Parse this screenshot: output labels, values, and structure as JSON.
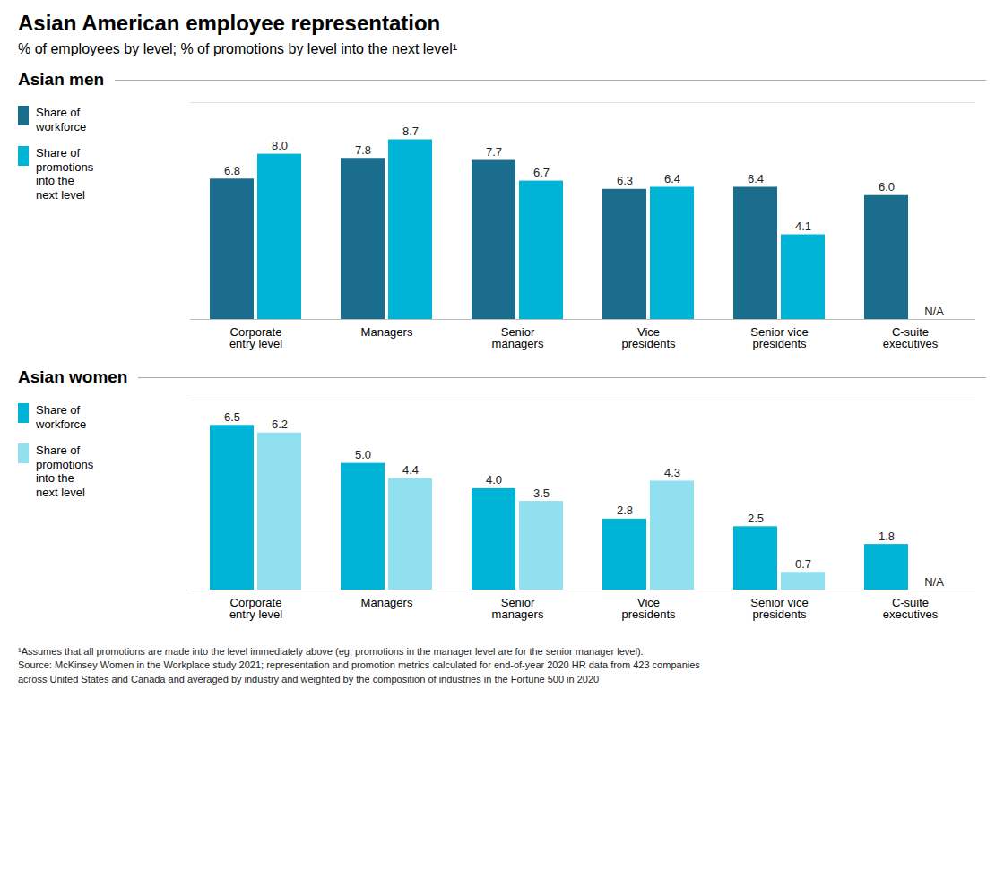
{
  "title": "Asian American employee representation",
  "subtitle": "% of employees by level; % of promotions by level into the next level¹",
  "footnote": "¹Assumes that all promotions are made into the level immediately above (eg, promotions in the manager level are for the senior manager level).\nSource: McKinsey Women in the Workplace study 2021; representation and promotion metrics calculated for end-of-year 2020 HR data from 423 companies\nacross United States and Canada and averaged by industry and weighted by the composition of industries in the Fortune 500 in 2020",
  "chart_data": [
    {
      "type": "bar",
      "title": "Asian men",
      "categories": [
        "Corporate\nentry level",
        "Managers",
        "Senior\nmanagers",
        "Vice\npresidents",
        "Senior vice\npresidents",
        "C-suite\nexecutives"
      ],
      "series": [
        {
          "name": "Share of\nworkforce",
          "color": "#1b6d8e",
          "values": [
            6.8,
            7.8,
            7.7,
            6.3,
            6.4,
            6.0
          ],
          "value_labels": [
            "6.8",
            "7.8",
            "7.7",
            "6.3",
            "6.4",
            "6.0"
          ]
        },
        {
          "name": "Share of\npromotions\ninto the\nnext level",
          "color": "#00b4d8",
          "values": [
            8.0,
            8.7,
            6.7,
            6.4,
            4.1,
            null
          ],
          "value_labels": [
            "8.0",
            "8.7",
            "6.7",
            "6.4",
            "4.1",
            null
          ]
        }
      ],
      "ylim": [
        0,
        10.5
      ],
      "yticks": [],
      "tick_labels": "x",
      "data_labels": true,
      "legend": "left",
      "annotations": [
        {
          "text": "N/A",
          "category": "C-suite\nexecutives",
          "series": "Share of\npromotions\ninto the\nnext level"
        }
      ]
    },
    {
      "type": "bar",
      "title": "Asian women",
      "categories": [
        "Corporate\nentry level",
        "Managers",
        "Senior\nmanagers",
        "Vice\npresidents",
        "Senior vice\npresidents",
        "C-suite\nexecutives"
      ],
      "series": [
        {
          "name": "Share of\nworkforce",
          "color": "#00b4d8",
          "values": [
            6.5,
            5.0,
            4.0,
            2.8,
            2.5,
            1.8
          ],
          "value_labels": [
            "6.5",
            "5.0",
            "4.0",
            "2.8",
            "2.5",
            "1.8"
          ]
        },
        {
          "name": "Share of\npromotions\ninto the\nnext level",
          "color": "#90e0ef",
          "values": [
            6.2,
            4.4,
            3.5,
            4.3,
            0.7,
            null
          ],
          "value_labels": [
            "6.2",
            "4.4",
            "3.5",
            "4.3",
            "0.7",
            null
          ]
        }
      ],
      "ylim": [
        0,
        7.5
      ],
      "yticks": [],
      "tick_labels": "x",
      "data_labels": true,
      "legend": "left",
      "annotations": [
        {
          "text": "N/A",
          "category": "C-suite\nexecutives",
          "series": "Share of\npromotions\ninto the\nnext level"
        }
      ]
    }
  ]
}
